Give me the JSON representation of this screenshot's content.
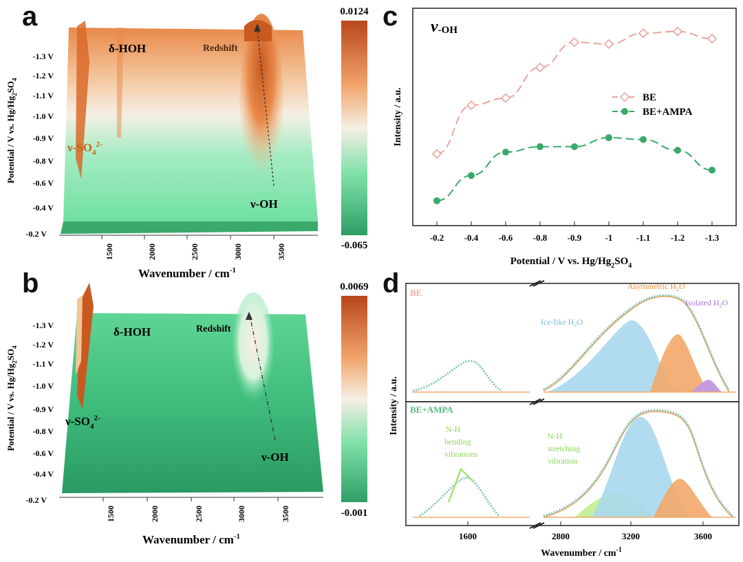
{
  "chart_data": [
    {
      "type": "heatmap",
      "panel": "a",
      "title": "",
      "xlabel": "Wavenumber / cm",
      "xlabel_sup": "-1",
      "ylabel": "Potential / V vs. Hg/Hg",
      "ylabel_sub": "2",
      "ylabel_end": "SO",
      "ylabel_sub2": "4",
      "x_ticks": [
        "1500",
        "2000",
        "2500",
        "3000",
        "3500"
      ],
      "y_ticks": [
        "-0.2 V",
        "-0.4 V",
        "-0.6 V",
        "-0.8 V",
        "-0.9 V",
        "-1.0 V",
        "-1.1 V",
        "-1.2 V",
        "-1.3 V"
      ],
      "colorbar_max": "0.0124",
      "colorbar_min": "-0.065",
      "annotations": {
        "hoh": "δ-HOH",
        "redshift": "Redshift",
        "so4": "ν-SO",
        "so4_sub": "4",
        "so4_sup": "2-",
        "oh": "ν-OH"
      },
      "colors": {
        "high": "#b8461c",
        "mid": "#f6efe4",
        "low": "#2e9e66"
      }
    },
    {
      "type": "heatmap",
      "panel": "b",
      "xlabel": "Wavenumber / cm",
      "xlabel_sup": "-1",
      "ylabel": "Potential / V vs. Hg/Hg",
      "ylabel_sub": "2",
      "ylabel_end": "SO",
      "ylabel_sub2": "4",
      "x_ticks": [
        "1500",
        "2000",
        "2500",
        "3000",
        "3500"
      ],
      "y_ticks": [
        "-0.2 V",
        "-0.4 V",
        "-0.6 V",
        "-0.8 V",
        "-0.9 V",
        "-1.0 V",
        "-1.1 V",
        "-1.2 V",
        "-1.3 V"
      ],
      "colorbar_max": "0.0069",
      "colorbar_min": "-0.001",
      "annotations": {
        "hoh": "δ-HOH",
        "redshift": "Redshift",
        "so4": "ν-SO",
        "so4_sub": "4",
        "so4_sup": "2-",
        "oh": "ν-OH"
      }
    },
    {
      "type": "line",
      "panel": "c",
      "title": "ν",
      "title_sub": "-OH",
      "xlabel": "Potential / V vs. Hg/Hg",
      "xlabel_sub": "2",
      "xlabel_end": "SO",
      "xlabel_sub2": "4",
      "ylabel": "Intensity / a.u.",
      "categories": [
        "-0.2",
        "-0.4",
        "-0.6",
        "-0.8",
        "-0.9",
        "-1",
        "-1.1",
        "-1.2",
        "-1.3"
      ],
      "ylim": [
        0,
        1
      ],
      "series": [
        {
          "name": "BE",
          "color": "#e8a49a",
          "marker": "diamond-open",
          "values": [
            0.36,
            0.63,
            0.67,
            0.84,
            0.98,
            0.97,
            1.03,
            1.04,
            1.0
          ]
        },
        {
          "name": "BE+AMPA",
          "color": "#3aa96a",
          "marker": "circle-filled",
          "values": [
            0.1,
            0.24,
            0.37,
            0.4,
            0.4,
            0.45,
            0.44,
            0.38,
            0.27
          ]
        }
      ]
    },
    {
      "type": "area",
      "panel": "d",
      "xlabel": "Wavenumber / cm",
      "xlabel_sup": "-1",
      "ylabel": "Intensity / a.u.",
      "x_ticks": [
        "1600",
        "2800",
        "3200",
        "3600"
      ],
      "subplots": [
        {
          "label": "BE",
          "peaks": [
            {
              "name": "Ice-like H",
              "sub": "2",
              "end": "O",
              "center": 3250,
              "color": "#a8d8ee"
            },
            {
              "name": "Asymmetric H",
              "sub": "2",
              "end": "O",
              "center": 3450,
              "color": "#f2a86a"
            },
            {
              "name": "Isolated H",
              "sub": "2",
              "end": "O",
              "center": 3580,
              "color": "#c59be0"
            }
          ]
        },
        {
          "label": "BE+AMPA",
          "peaks": [
            {
              "name": "Ice-like",
              "center": 3250,
              "color": "#a8d8ee"
            },
            {
              "name": "Asymmetric",
              "center": 3450,
              "color": "#f2a86a"
            },
            {
              "name": "N-H stretching",
              "center": 3020,
              "color": "#c8ef9a"
            }
          ],
          "notes": {
            "bend": [
              "N-H",
              "bending",
              "vibrations"
            ],
            "stretch": [
              "N-H",
              "stretching",
              "vibration"
            ]
          }
        }
      ]
    }
  ],
  "panel_labels": [
    "a",
    "b",
    "c",
    "d"
  ]
}
